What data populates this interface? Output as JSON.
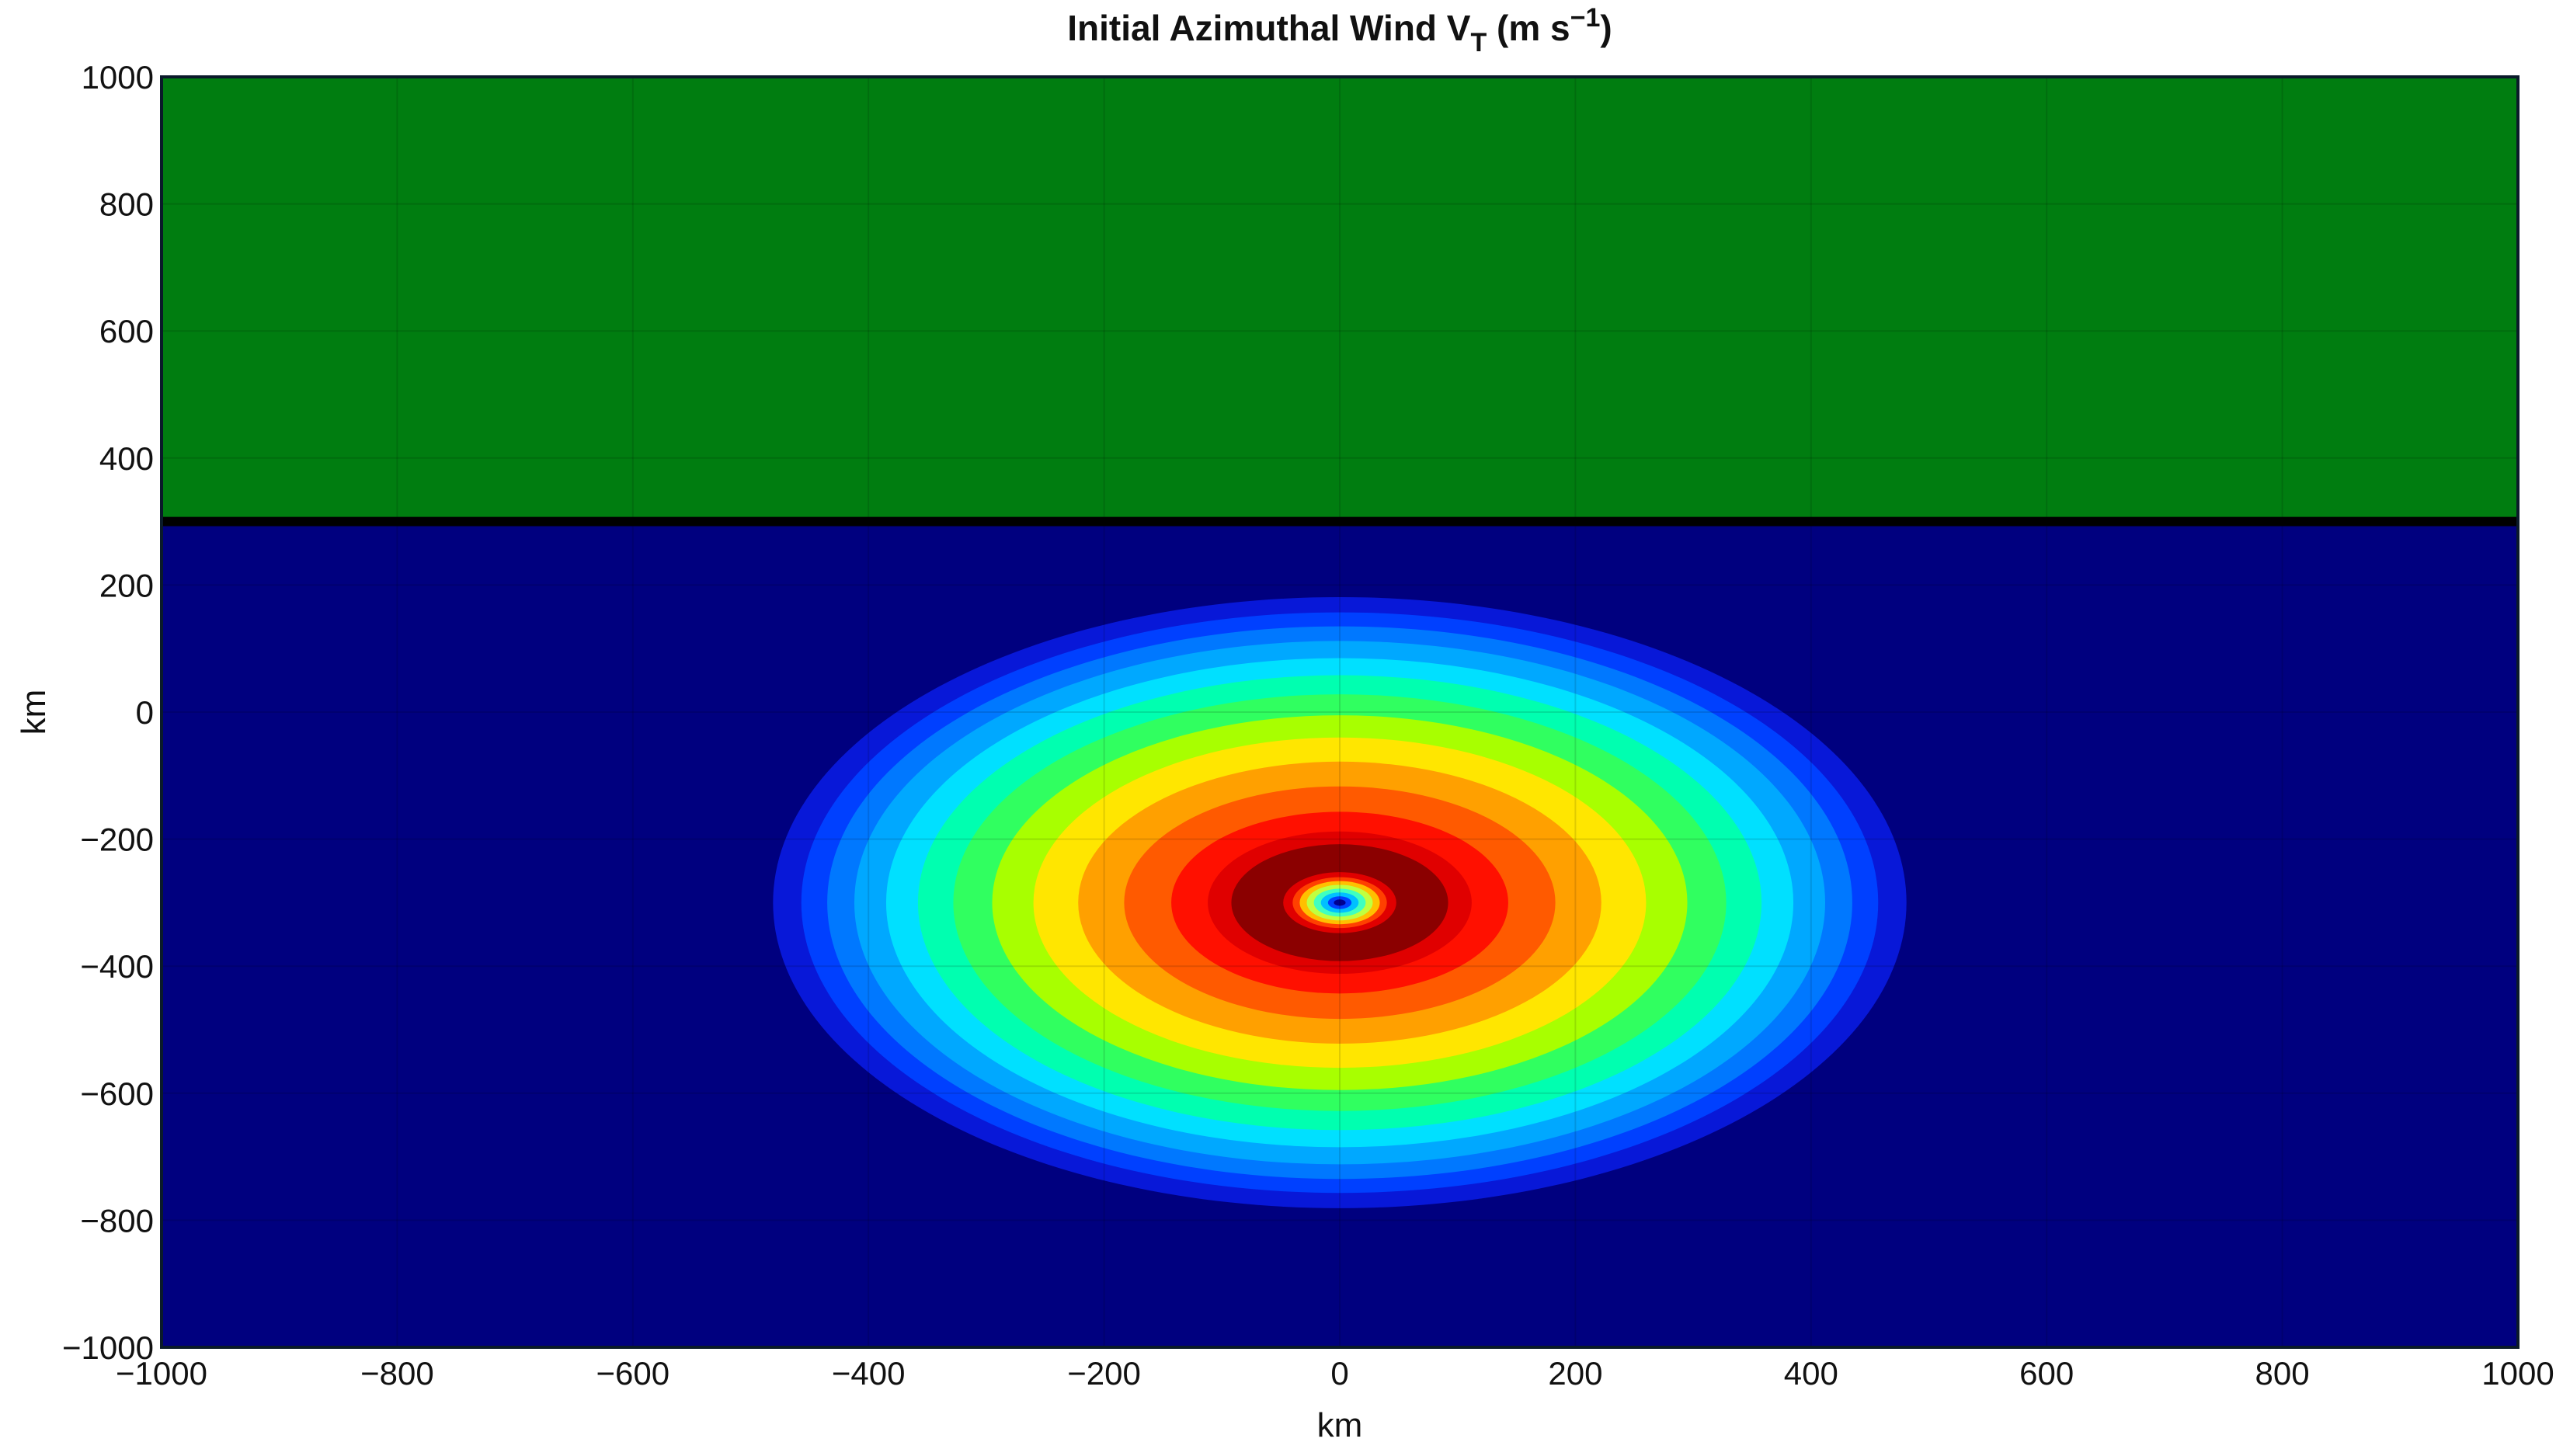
{
  "chart_data": {
    "type": "contour",
    "title_parts": [
      "Initial  Azimuthal  Wind  V",
      "T",
      "  (m  s",
      "−1",
      ")"
    ],
    "x_label": "km",
    "y_label": "km",
    "xlim": [
      -1000,
      1000
    ],
    "ylim": [
      -1000,
      1000
    ],
    "xticks": [
      {
        "value": -1000,
        "label": "−1000"
      },
      {
        "value": -800,
        "label": "−800"
      },
      {
        "value": -600,
        "label": "−600"
      },
      {
        "value": -400,
        "label": "−400"
      },
      {
        "value": -200,
        "label": "−200"
      },
      0,
      200,
      400,
      600,
      800,
      1000
    ],
    "yticks": [
      {
        "value": -1000,
        "label": "−1000"
      },
      {
        "value": -800,
        "label": "−800"
      },
      {
        "value": -600,
        "label": "−600"
      },
      {
        "value": -400,
        "label": "−400"
      },
      {
        "value": -200,
        "label": "−200"
      },
      0,
      200,
      400,
      600,
      800,
      1000
    ],
    "grid": true,
    "background_color": "#00007f",
    "center": [
      0,
      -300
    ],
    "radii": [
      481,
      457,
      435,
      412,
      385,
      358,
      328,
      295,
      260,
      222,
      183,
      143,
      112,
      92,
      48,
      40,
      34,
      28,
      22,
      16,
      10,
      5
    ],
    "colors": [
      "#0818d8",
      "#0040ff",
      "#0078ff",
      "#00a8ff",
      "#00e0ff",
      "#00ffb0",
      "#30ff60",
      "#a8ff00",
      "#ffe600",
      "#ffa000",
      "#ff5a00",
      "#ff1000",
      "#e00000",
      "#8b0000",
      "#e00000",
      "#ff4000",
      "#ffc000",
      "#c0ff40",
      "#40ffc0",
      "#00c0ff",
      "#0040ff",
      "#000090"
    ],
    "mask_bottom": 300,
    "mask_color": "#007d10"
  }
}
